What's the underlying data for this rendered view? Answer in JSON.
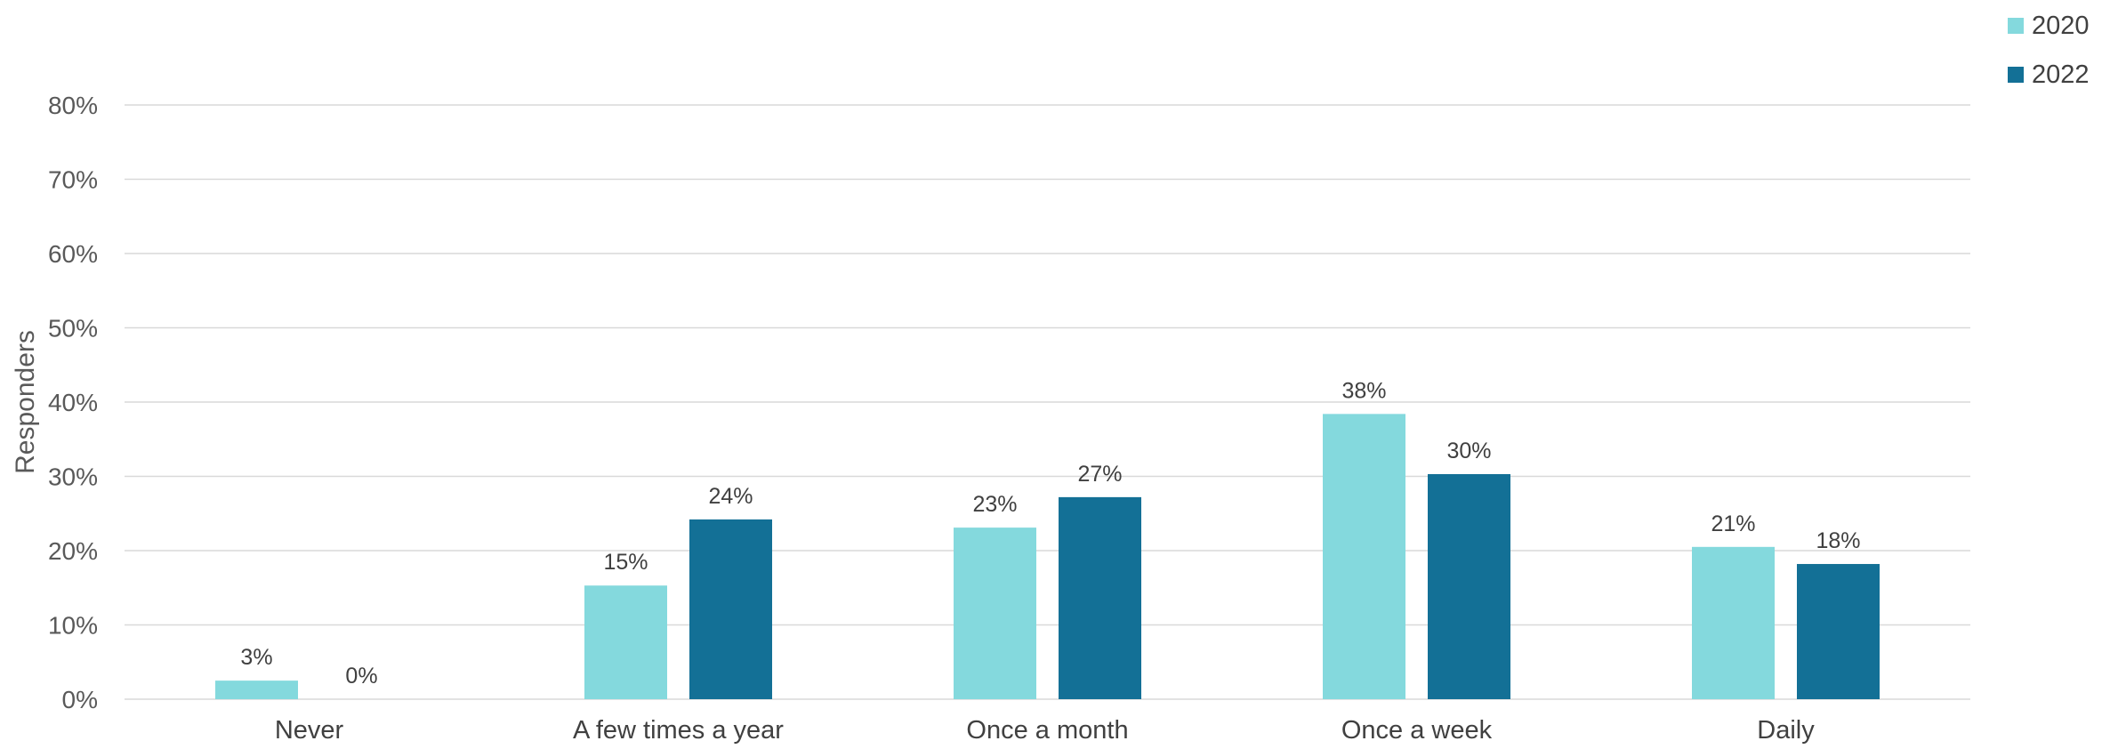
{
  "chart_data": {
    "type": "bar",
    "categories": [
      "Never",
      "A few times a year",
      "Once a month",
      "Once a week",
      "Daily"
    ],
    "series": [
      {
        "name": "2020",
        "values": [
          2.5,
          15.3,
          23.1,
          38.4,
          20.5
        ],
        "labels": [
          "3%",
          "15%",
          "23%",
          "38%",
          "21%"
        ],
        "color": "#84d9dd"
      },
      {
        "name": "2022",
        "values": [
          0,
          24.2,
          27.2,
          30.3,
          18.2
        ],
        "labels": [
          "0%",
          "24%",
          "27%",
          "30%",
          "18%"
        ],
        "color": "#137096"
      }
    ],
    "ylabel": "Responders",
    "xlabel": "",
    "ylim": [
      0,
      80
    ],
    "yticks": [
      "0%",
      "10%",
      "20%",
      "30%",
      "40%",
      "50%",
      "60%",
      "70%",
      "80%"
    ],
    "grid": true,
    "legend_position": "top-right"
  }
}
